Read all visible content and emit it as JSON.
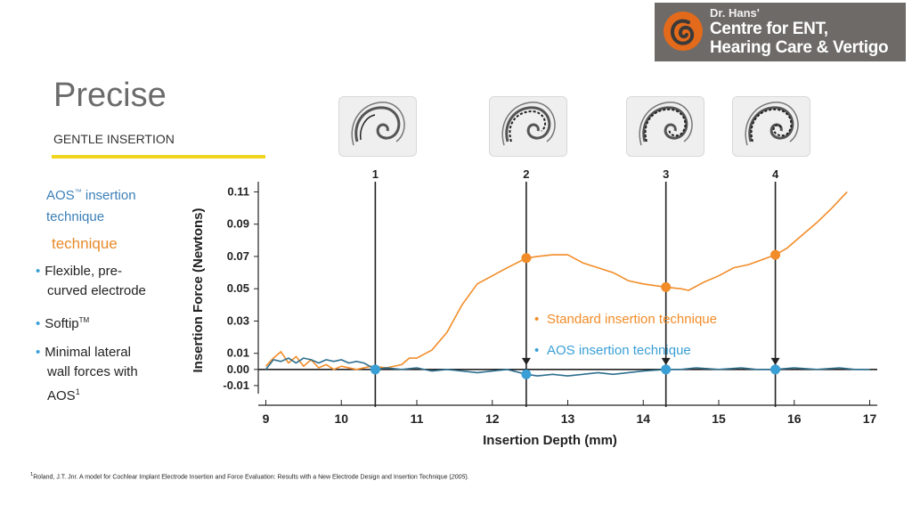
{
  "logo": {
    "line1": "Dr. Hans'",
    "line2": "Centre for ENT,",
    "line3": "Hearing Care & Vertigo",
    "colors": {
      "background": "#6d6a67",
      "mark": "#e46a1b"
    }
  },
  "slide": {
    "title": "Precise",
    "subtitle": "GENTLE INSERTION",
    "accent_color": "#f1d41e"
  },
  "sidebar": {
    "aos_line1": "AOS",
    "aos_tm": "™",
    "aos_line1_rest": " insertion",
    "aos_line2": "technique",
    "technique_label": "technique",
    "bullets": [
      {
        "line1": "Flexible, pre-",
        "line2": "curved electrode"
      },
      {
        "text": "Softip",
        "sup": "TM"
      },
      {
        "line1": "Minimal lateral",
        "line2": "wall forces with",
        "line3": "AOS",
        "sup": "1"
      }
    ]
  },
  "footnote": {
    "sup": "1",
    "text": "Roland, J.T. Jnr. A model for Cochlear Implant Electrode Insertion and Force Evaluation: Results with a New Electrode Design and Insertion Technique (",
    "year": "2005",
    "end": ")."
  },
  "chart_data": {
    "type": "line",
    "title": "",
    "xlabel": "Insertion Depth (mm)",
    "ylabel": "Insertion Force (Newtons)",
    "xlim": [
      8.9,
      17.1
    ],
    "ylim": [
      -0.015,
      0.113
    ],
    "x_ticks": [
      9,
      10,
      11,
      12,
      13,
      14,
      15,
      16,
      17
    ],
    "y_ticks": [
      0.11,
      0.09,
      0.07,
      0.05,
      0.03,
      0.01,
      0.0,
      -0.01
    ],
    "y_tick_labels": [
      "0.11",
      "0.09",
      "0.07",
      "0.05",
      "0.03",
      "0.01",
      "0.00",
      "-0.01"
    ],
    "grid": false,
    "markers": [
      {
        "label": "1",
        "x": 10.45
      },
      {
        "label": "2",
        "x": 12.45
      },
      {
        "label": "3",
        "x": 14.3
      },
      {
        "label": "4",
        "x": 15.75
      }
    ],
    "legend": [
      {
        "label": "Standard insertion technique",
        "color": "#f28c28"
      },
      {
        "label": "AOS insertion technique",
        "color": "#3a9fd5"
      }
    ],
    "series": [
      {
        "color": "#f28c28",
        "x": [
          9.0,
          9.1,
          9.2,
          9.3,
          9.4,
          9.5,
          9.6,
          9.7,
          9.8,
          9.9,
          10.0,
          10.2,
          10.4,
          10.6,
          10.8,
          10.9,
          11.0,
          11.2,
          11.4,
          11.6,
          11.8,
          12.0,
          12.2,
          12.45,
          12.6,
          12.8,
          13.0,
          13.2,
          13.4,
          13.6,
          13.8,
          14.0,
          14.3,
          14.5,
          14.6,
          14.8,
          15.0,
          15.2,
          15.4,
          15.75,
          15.9,
          16.1,
          16.3,
          16.5,
          16.7
        ],
        "y": [
          0.002,
          0.007,
          0.011,
          0.004,
          0.008,
          0.002,
          0.006,
          0.001,
          0.003,
          0.0,
          0.002,
          0.0,
          0.002,
          0.001,
          0.003,
          0.007,
          0.007,
          0.012,
          0.023,
          0.04,
          0.053,
          0.058,
          0.063,
          0.069,
          0.07,
          0.071,
          0.071,
          0.066,
          0.063,
          0.06,
          0.055,
          0.053,
          0.051,
          0.05,
          0.049,
          0.054,
          0.058,
          0.063,
          0.065,
          0.071,
          0.075,
          0.083,
          0.091,
          0.1,
          0.11
        ]
      },
      {
        "color": "#2e6f8e",
        "x": [
          9.0,
          9.1,
          9.2,
          9.3,
          9.4,
          9.5,
          9.6,
          9.7,
          9.8,
          9.9,
          10.0,
          10.1,
          10.2,
          10.3,
          10.45,
          10.6,
          10.8,
          11.0,
          11.2,
          11.4,
          11.6,
          11.8,
          12.0,
          12.2,
          12.45,
          12.6,
          12.8,
          13.0,
          13.2,
          13.4,
          13.6,
          13.8,
          14.0,
          14.3,
          14.5,
          14.7,
          15.0,
          15.3,
          15.5,
          15.75,
          16.0,
          16.3,
          16.6,
          16.8,
          17.0
        ],
        "y": [
          0.0,
          0.006,
          0.005,
          0.007,
          0.004,
          0.007,
          0.006,
          0.004,
          0.006,
          0.005,
          0.006,
          0.004,
          0.005,
          0.004,
          0.0,
          0.001,
          0.0,
          0.001,
          -0.001,
          0.0,
          -0.001,
          -0.002,
          -0.001,
          0.0,
          -0.003,
          -0.004,
          -0.003,
          -0.004,
          -0.003,
          -0.002,
          -0.003,
          -0.002,
          -0.001,
          0.0,
          0.0,
          0.001,
          0.0,
          0.001,
          0.0,
          0.0,
          0.001,
          0.0,
          0.001,
          0.0,
          0.0
        ]
      }
    ]
  }
}
